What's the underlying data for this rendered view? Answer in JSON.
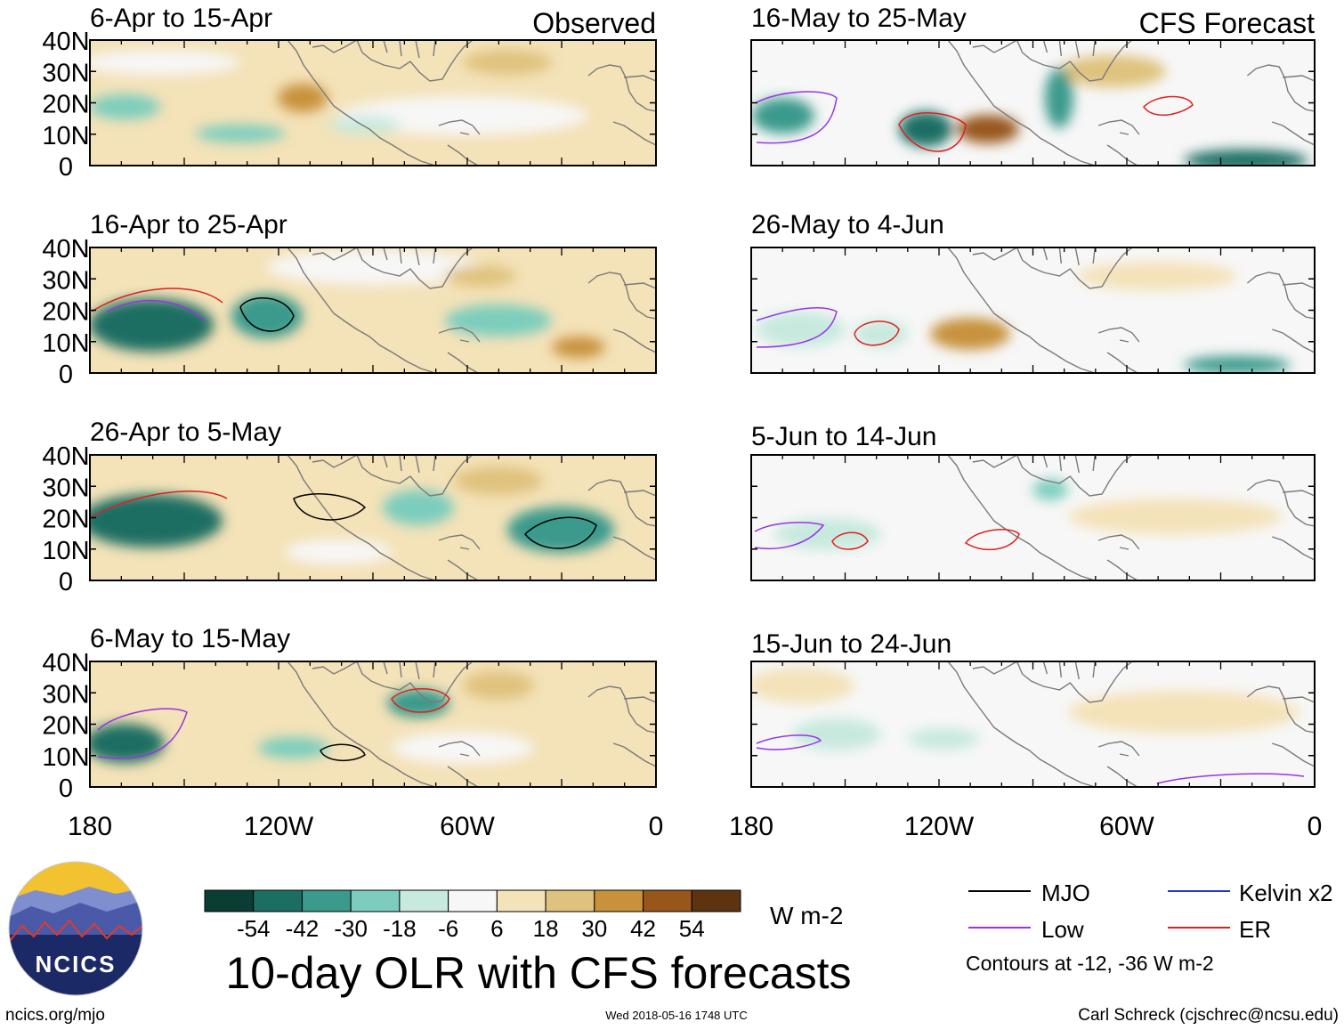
{
  "header": {
    "observed_label": "Observed",
    "forecast_label": "CFS Forecast"
  },
  "panels": {
    "observed": [
      {
        "title": "6-Apr to 15-Apr"
      },
      {
        "title": "16-Apr to 25-Apr"
      },
      {
        "title": "26-Apr to 5-May"
      },
      {
        "title": "6-May to 15-May"
      }
    ],
    "forecast": [
      {
        "title": "16-May to 25-May"
      },
      {
        "title": "26-May to 4-Jun"
      },
      {
        "title": "5-Jun to 14-Jun"
      },
      {
        "title": "15-Jun to 24-Jun"
      }
    ]
  },
  "axes": {
    "lat_labels": [
      "40N",
      "30N",
      "20N",
      "10N",
      "0"
    ],
    "lat_values": [
      40,
      30,
      20,
      10,
      0
    ],
    "lon_labels": [
      "180",
      "120W",
      "60W",
      "0"
    ],
    "lon_values": [
      -180,
      -120,
      -60,
      0
    ],
    "lon_range": [
      -180,
      0
    ],
    "lat_range": [
      0,
      40
    ]
  },
  "colorbar": {
    "colors": [
      "#0a3d33",
      "#1c6e63",
      "#3a9a8c",
      "#7ccdbd",
      "#c7e9de",
      "#f7f7f7",
      "#f4e2b8",
      "#dfc27d",
      "#c8923c",
      "#98561a",
      "#5e3410"
    ],
    "labels": [
      "-54",
      "-42",
      "-30",
      "-18",
      "-6",
      "6",
      "18",
      "30",
      "42",
      "54"
    ],
    "units": "W m-2"
  },
  "legend": {
    "items": [
      {
        "label": "MJO",
        "color": "#000000"
      },
      {
        "label": "Kelvin x2",
        "color": "#1f35d6"
      },
      {
        "label": "Low",
        "color": "#9a33e6"
      },
      {
        "label": "ER",
        "color": "#e0201f"
      }
    ],
    "contours_note": "Contours at -12, -36 W m-2"
  },
  "title": "10-day OLR with CFS forecasts",
  "logo_text": "NCICS",
  "footer": {
    "left": "ncics.org/mjo",
    "center": "Wed 2018-05-16 1748 UTC",
    "right": "Carl Schreck (cjschrec@ncsu.edu)"
  }
}
